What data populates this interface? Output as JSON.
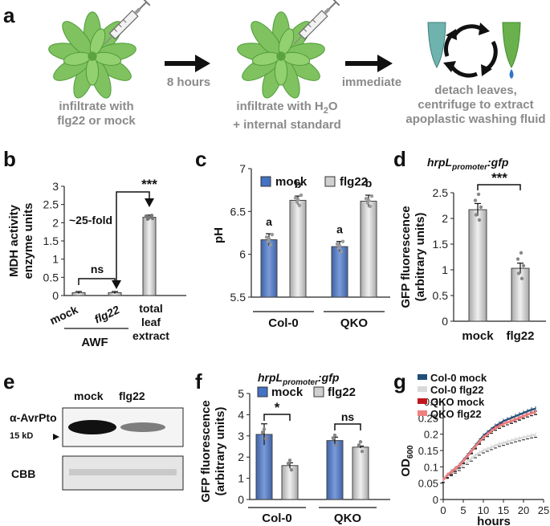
{
  "panel_a": {
    "label": "a",
    "step1": [
      "infiltrate with",
      "flg22 or mock"
    ],
    "arrow1": "8 hours",
    "step2_line1": "infiltrate with H",
    "step2_sub": "2",
    "step2_tail": "O",
    "step2_line2": "+ internal standard",
    "arrow2": "immediate",
    "step3": [
      "detach leaves,",
      "centrifuge to extract",
      "apoplastic washing fluid"
    ],
    "colors": {
      "leaf": "#6ab04c",
      "leaf_dark": "#3f8f2f",
      "arrow": "#111111",
      "text": "#8a8a8a",
      "tube_teal": "#6fb3ae",
      "droplet": "#2f73c8"
    }
  },
  "panel_b": {
    "label": "b",
    "ylabel": [
      "MDH activity",
      "enzyme units"
    ],
    "annotation_fold": "~25-fold",
    "sig_ns": "ns",
    "sig_star": "***",
    "group_label": "AWF",
    "chart_data": {
      "type": "bar",
      "categories": [
        "mock",
        "flg22",
        "total leaf extract"
      ],
      "category_lines": [
        [
          "mock"
        ],
        [
          "flg22"
        ],
        [
          "total",
          "leaf",
          "extract"
        ]
      ],
      "values": [
        0.08,
        0.08,
        2.15
      ],
      "errors": [
        0.03,
        0.03,
        0.06
      ],
      "ylim": [
        0,
        3
      ],
      "yticks": [
        "0",
        "0.5",
        "1",
        "1.5",
        "2",
        "2.5",
        "3"
      ]
    }
  },
  "panel_c": {
    "label": "c",
    "ylabel": "pH",
    "legend": [
      "mock",
      "flg22"
    ],
    "chart_data": {
      "type": "bar",
      "categories": [
        "Col-0",
        "QKO"
      ],
      "series": [
        {
          "name": "mock",
          "values": [
            6.17,
            6.09
          ],
          "errors": [
            0.07,
            0.06
          ],
          "letters": [
            "a",
            "a"
          ]
        },
        {
          "name": "flg22",
          "values": [
            6.63,
            6.62
          ],
          "errors": [
            0.05,
            0.07
          ],
          "letters": [
            "b",
            "b"
          ]
        }
      ],
      "ylim": [
        5.5,
        7
      ],
      "yticks": [
        "5.5",
        "6",
        "6.5",
        "7"
      ]
    }
  },
  "panel_d": {
    "label": "d",
    "title_main": "hrpL",
    "title_sub": "promoter",
    "title_tail": ":gfp",
    "ylabel": [
      "GFP fluorescence",
      "(arbitrary units)"
    ],
    "sig": "***",
    "chart_data": {
      "type": "bar",
      "categories": [
        "mock",
        "flg22"
      ],
      "values": [
        2.17,
        1.03
      ],
      "errors": [
        0.12,
        0.1
      ],
      "ylim": [
        0,
        2.5
      ],
      "yticks": [
        "0",
        "0.5",
        "1",
        "1.5",
        "2",
        "2.5"
      ]
    }
  },
  "panel_e": {
    "label": "e",
    "lanes": [
      "mock",
      "flg22"
    ],
    "antibody": "α-AvrPto",
    "marker": "15 kD",
    "stain": "CBB"
  },
  "panel_f": {
    "label": "f",
    "title_main": "hrpL",
    "title_sub": "promoter",
    "title_tail": ":gfp",
    "ylabel": [
      "GFP fluorescence",
      "(arbitrary units)"
    ],
    "legend": [
      "mock",
      "flg22"
    ],
    "sig": [
      "*",
      "ns"
    ],
    "chart_data": {
      "type": "bar",
      "categories": [
        "Col-0",
        "QKO"
      ],
      "series": [
        {
          "name": "mock",
          "values": [
            3.07,
            2.78
          ],
          "errors": [
            0.5,
            0.16
          ]
        },
        {
          "name": "flg22",
          "values": [
            1.6,
            2.47
          ],
          "errors": [
            0.13,
            0.05
          ]
        }
      ],
      "ylim": [
        0,
        5
      ],
      "yticks": [
        "0",
        "1",
        "2",
        "3",
        "4",
        "5"
      ]
    }
  },
  "panel_g": {
    "label": "g",
    "ylabel": "OD",
    "ylabel_sub": "600",
    "xlabel": "hours",
    "chart_data": {
      "type": "line",
      "x": [
        0,
        1,
        2,
        3,
        4,
        5,
        6,
        7,
        8,
        9,
        10,
        11,
        12,
        13,
        14,
        15,
        16,
        17,
        18,
        19,
        20,
        21,
        22,
        23
      ],
      "series": [
        {
          "name": "Col-0 mock",
          "color": "#1f4e79",
          "values": [
            0.06,
            0.075,
            0.085,
            0.095,
            0.105,
            0.12,
            0.135,
            0.15,
            0.165,
            0.18,
            0.195,
            0.205,
            0.215,
            0.225,
            0.232,
            0.24,
            0.245,
            0.25,
            0.255,
            0.26,
            0.265,
            0.27,
            0.275,
            0.278
          ]
        },
        {
          "name": "Col-0 flg22",
          "color": "#d9d9d9",
          "values": [
            0.06,
            0.072,
            0.08,
            0.088,
            0.096,
            0.105,
            0.115,
            0.125,
            0.135,
            0.143,
            0.15,
            0.155,
            0.16,
            0.165,
            0.17,
            0.173,
            0.177,
            0.18,
            0.184,
            0.187,
            0.19,
            0.193,
            0.196,
            0.198
          ]
        },
        {
          "name": "QKO mock",
          "color": "#c0161e",
          "values": [
            0.06,
            0.074,
            0.083,
            0.093,
            0.103,
            0.117,
            0.132,
            0.147,
            0.162,
            0.176,
            0.19,
            0.2,
            0.21,
            0.22,
            0.226,
            0.232,
            0.236,
            0.24,
            0.245,
            0.25,
            0.255,
            0.26,
            0.264,
            0.268
          ]
        },
        {
          "name": "QKO flg22",
          "color": "#f08080",
          "values": [
            0.06,
            0.075,
            0.084,
            0.094,
            0.104,
            0.118,
            0.133,
            0.148,
            0.163,
            0.177,
            0.19,
            0.2,
            0.21,
            0.219,
            0.225,
            0.231,
            0.236,
            0.241,
            0.246,
            0.251,
            0.256,
            0.26,
            0.264,
            0.267
          ]
        }
      ],
      "xlim": [
        0,
        25
      ],
      "ylim": [
        0,
        0.3
      ],
      "xticks": [
        "0",
        "5",
        "10",
        "15",
        "20",
        "25"
      ],
      "yticks": [
        "0",
        "0.05",
        "0.1",
        "0.15",
        "0.2",
        "0.25",
        "0.3"
      ],
      "legend_position": "top-left"
    }
  },
  "colors": {
    "blue": "#4472c4",
    "gray_bar": "#d0d0d0"
  }
}
